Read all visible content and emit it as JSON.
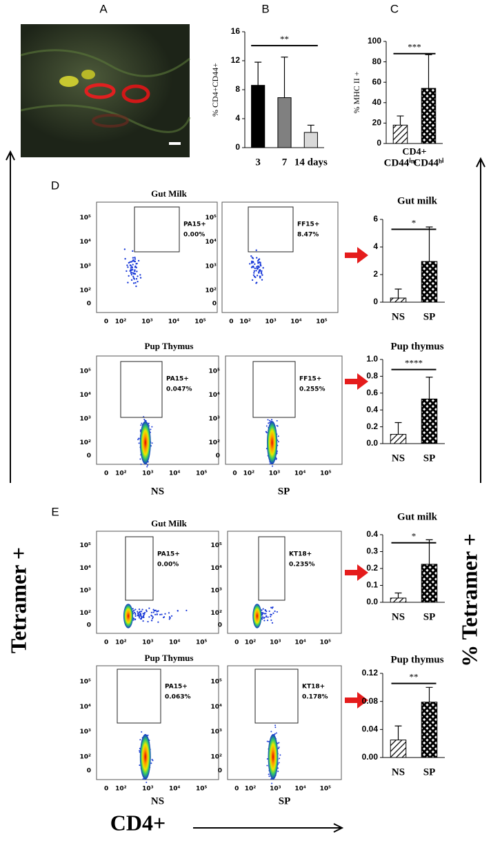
{
  "panel_labels": [
    "A",
    "B",
    "C",
    "D",
    "E"
  ],
  "axis_labels": {
    "left": "Tetramer +",
    "right": "% Tetramer +",
    "bottom": "CD4+"
  },
  "chart_data": [
    {
      "type": "bar",
      "ylabel": "% CD4+CD44+",
      "categories": [
        "3",
        "7",
        "14 days"
      ],
      "values": [
        8.6,
        6.9,
        2.1
      ],
      "errors": [
        3.2,
        5.6,
        1.0
      ],
      "colors": [
        "#000000",
        "#808080",
        "#d9d9d9"
      ],
      "ylim": [
        0,
        16
      ],
      "yticks": [
        0,
        4,
        8,
        12,
        16
      ],
      "significance": "**"
    },
    {
      "type": "bar",
      "ylabel": "% MHC II +",
      "x_group_label": "CD4+",
      "categories": [
        "CD44ⁱⁿᵗ",
        "CD44ʰⁱ"
      ],
      "values": [
        18,
        54
      ],
      "errors": [
        9,
        33
      ],
      "colors": [
        "#ffffff",
        "#ffffff"
      ],
      "patterns": [
        "hatch",
        "check"
      ],
      "ylim": [
        0,
        100
      ],
      "yticks": [
        0,
        20,
        40,
        60,
        80,
        100
      ],
      "significance": "***"
    },
    {
      "type": "bar",
      "title": "Gut milk",
      "categories": [
        "NS",
        "SP"
      ],
      "values": [
        0.3,
        2.95
      ],
      "errors": [
        0.65,
        2.5
      ],
      "colors": [
        "#ffffff",
        "#ffffff"
      ],
      "patterns": [
        "hatch",
        "check"
      ],
      "ylim": [
        0,
        6
      ],
      "yticks": [
        0,
        2,
        4,
        6
      ],
      "significance": "*"
    },
    {
      "type": "bar",
      "title": "Pup thymus",
      "categories": [
        "NS",
        "SP"
      ],
      "values": [
        0.11,
        0.53
      ],
      "errors": [
        0.14,
        0.26
      ],
      "colors": [
        "#ffffff",
        "#ffffff"
      ],
      "patterns": [
        "hatch",
        "check"
      ],
      "ylim": [
        0,
        1
      ],
      "yticks": [
        {
          "value": 0,
          "label": "0.0"
        },
        0.2,
        0.4,
        0.6,
        0.8,
        {
          "value": 1,
          "label": "1.0"
        }
      ],
      "significance": "****"
    },
    {
      "type": "bar",
      "title": "Gut milk",
      "categories": [
        "NS",
        "SP"
      ],
      "values": [
        0.025,
        0.225
      ],
      "errors": [
        0.03,
        0.145
      ],
      "colors": [
        "#ffffff",
        "#ffffff"
      ],
      "patterns": [
        "hatch",
        "check"
      ],
      "ylim": [
        0,
        0.4
      ],
      "yticks": [
        {
          "value": 0,
          "label": "0.0"
        },
        0.1,
        0.2,
        0.3,
        0.4
      ],
      "significance": "*"
    },
    {
      "type": "bar",
      "title": "Pup thymus",
      "categories": [
        "NS",
        "SP"
      ],
      "values": [
        0.025,
        0.079
      ],
      "errors": [
        0.02,
        0.021
      ],
      "colors": [
        "#ffffff",
        "#ffffff"
      ],
      "patterns": [
        "hatch",
        "check"
      ],
      "ylim": [
        0,
        0.12
      ],
      "yticks": [
        {
          "value": 0,
          "label": "0.00"
        },
        0.04,
        0.08,
        0.12
      ],
      "significance": "**"
    }
  ],
  "flow_ticks": [
    0,
    {
      "value": 100,
      "label": "10²"
    },
    {
      "value": 1000,
      "label": "10³"
    },
    {
      "value": 10000,
      "label": "10⁴"
    },
    {
      "value": 100000,
      "label": "10⁵"
    }
  ],
  "flow_plots": [
    {
      "title": "Gut Milk",
      "plots": [
        {
          "gate": "PA15+",
          "percent": "0.00%"
        },
        {
          "gate": "FF15+",
          "percent": "8.47%"
        }
      ]
    },
    {
      "title": "Pup Thymus",
      "plots": [
        {
          "gate": "PA15+",
          "percent": "0.047%"
        },
        {
          "gate": "FF15+",
          "percent": "0.255%"
        }
      ],
      "x_labels": [
        "NS",
        "SP"
      ]
    },
    {
      "title": "Gut Milk",
      "plots": [
        {
          "gate": "PA15+",
          "percent": "0.00%"
        },
        {
          "gate": "KT18+",
          "percent": "0.235%"
        }
      ]
    },
    {
      "title": "Pup Thymus",
      "plots": [
        {
          "gate": "PA15+",
          "percent": "0.063%"
        },
        {
          "gate": "KT18+",
          "percent": "0.178%"
        }
      ],
      "x_labels": [
        "NS",
        "SP"
      ]
    }
  ]
}
